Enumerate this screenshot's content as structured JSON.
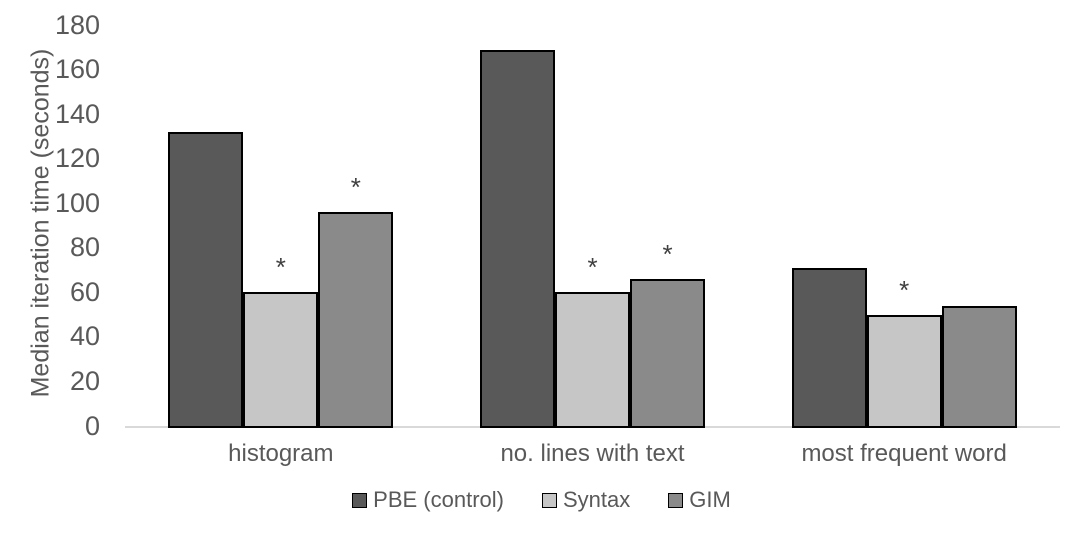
{
  "chart_data": {
    "type": "bar",
    "title": "",
    "ylabel": "Median iteration time (seconds)",
    "xlabel": "",
    "ylim": [
      0,
      180
    ],
    "ytick_interval": 20,
    "yticks": [
      0,
      20,
      40,
      60,
      80,
      100,
      120,
      140,
      160,
      180
    ],
    "categories": [
      "histogram",
      "no. lines with text",
      "most frequent word"
    ],
    "series": [
      {
        "name": "PBE (control)",
        "color": "#595959",
        "values": [
          132,
          169,
          71
        ],
        "significant": [
          false,
          false,
          false
        ]
      },
      {
        "name": "Syntax",
        "color": "#c6c6c6",
        "values": [
          60,
          60,
          50
        ],
        "significant": [
          true,
          true,
          true
        ]
      },
      {
        "name": "GIM",
        "color": "#8a8a8a",
        "values": [
          96,
          66,
          54
        ],
        "significant": [
          true,
          true,
          false
        ]
      }
    ],
    "significance_marker": "*",
    "legend_position": "bottom",
    "grid": false,
    "colors": {
      "bar_border": "#000000",
      "axis_line": "#d9d9d9",
      "text": "#595959",
      "marker": "#404040",
      "background": "#ffffff"
    }
  }
}
